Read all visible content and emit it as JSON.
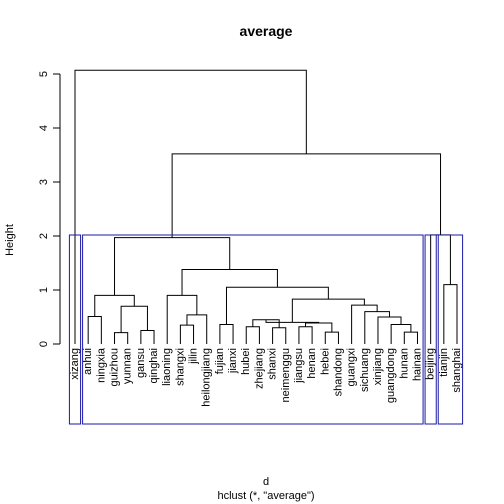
{
  "chart_data": {
    "type": "dendrogram",
    "title": "average",
    "ylabel": "Height",
    "xlabel": "d",
    "sublabel": "hclust (*, \"average\")",
    "ylim": [
      0,
      5.2
    ],
    "yticks": [
      0,
      1,
      2,
      3,
      4,
      5
    ],
    "cut_height": 2.0,
    "leaves": [
      "xizang",
      "anhui",
      "ningxia",
      "guizhou",
      "yunnan",
      "gansu",
      "qinghai",
      "liaoning",
      "shangxi",
      "jilin",
      "heilongjiang",
      "fujian",
      "jianxi",
      "hubei",
      "zhejiang",
      "shanxi",
      "neimenggu",
      "jiangsu",
      "henan",
      "hebei",
      "shandong",
      "guangxi",
      "sichuang",
      "xinjiang",
      "guangdong",
      "hunan",
      "hainan",
      "beijing",
      "tianjin",
      "shanghai"
    ],
    "merges": [
      {
        "left": "leaf:anhui",
        "right": "leaf:ningxia",
        "height": 0.51
      },
      {
        "left": "leaf:guizhou",
        "right": "leaf:yunnan",
        "height": 0.21
      },
      {
        "left": "leaf:gansu",
        "right": "leaf:qinghai",
        "height": 0.25
      },
      {
        "left": "node:1",
        "right": "node:2",
        "height": 0.7
      },
      {
        "left": "node:0",
        "right": "node:3",
        "height": 0.9
      },
      {
        "left": "leaf:shangxi",
        "right": "leaf:jilin",
        "height": 0.35
      },
      {
        "left": "leaf:heilongjiang",
        "right": "node:5",
        "height": 0.54
      },
      {
        "left": "leaf:liaoning",
        "right": "node:6",
        "height": 0.9
      },
      {
        "left": "leaf:jianxi",
        "right": "leaf:fujian",
        "height": 0.36
      },
      {
        "left": "leaf:hubei",
        "right": "leaf:zhejiang",
        "height": 0.32
      },
      {
        "left": "leaf:shanxi",
        "right": "leaf:neimenggu",
        "height": 0.3
      },
      {
        "left": "node:9",
        "right": "node:10",
        "height": 0.45
      },
      {
        "left": "leaf:jiangsu",
        "right": "leaf:henan",
        "height": 0.32
      },
      {
        "left": "leaf:hebei",
        "right": "leaf:shandong",
        "height": 0.22
      },
      {
        "left": "node:12",
        "right": "node:13",
        "height": 0.39
      },
      {
        "left": "node:11",
        "right": "node:14",
        "height": 0.4
      },
      {
        "left": "leaf:hunan",
        "right": "leaf:hainan",
        "height": 0.22
      },
      {
        "left": "leaf:guangdong",
        "right": "node:16",
        "height": 0.36
      },
      {
        "left": "leaf:xinjiang",
        "right": "node:17",
        "height": 0.5
      },
      {
        "left": "leaf:sichuang",
        "right": "node:18",
        "height": 0.6
      },
      {
        "left": "leaf:guangxi",
        "right": "node:19",
        "height": 0.72
      },
      {
        "left": "node:15",
        "right": "node:20",
        "height": 0.83
      },
      {
        "left": "node:8",
        "right": "node:21",
        "height": 1.05
      },
      {
        "left": "node:7",
        "right": "node:22",
        "height": 1.38
      },
      {
        "left": "node:4",
        "right": "node:23",
        "height": 1.97
      },
      {
        "left": "leaf:tianjin",
        "right": "leaf:shanghai",
        "height": 1.1
      },
      {
        "left": "leaf:beijing",
        "right": "node:25",
        "height": 2.02
      },
      {
        "left": "node:24",
        "right": "node:26",
        "height": 3.52
      },
      {
        "left": "leaf:xizang",
        "right": "node:27",
        "height": 5.07
      }
    ],
    "clusters": [
      {
        "from": 0,
        "to": 0
      },
      {
        "from": 1,
        "to": 26
      },
      {
        "from": 27,
        "to": 27
      },
      {
        "from": 28,
        "to": 29
      }
    ],
    "cluster_color": "#1a1aa6",
    "line_color": "#000000"
  }
}
